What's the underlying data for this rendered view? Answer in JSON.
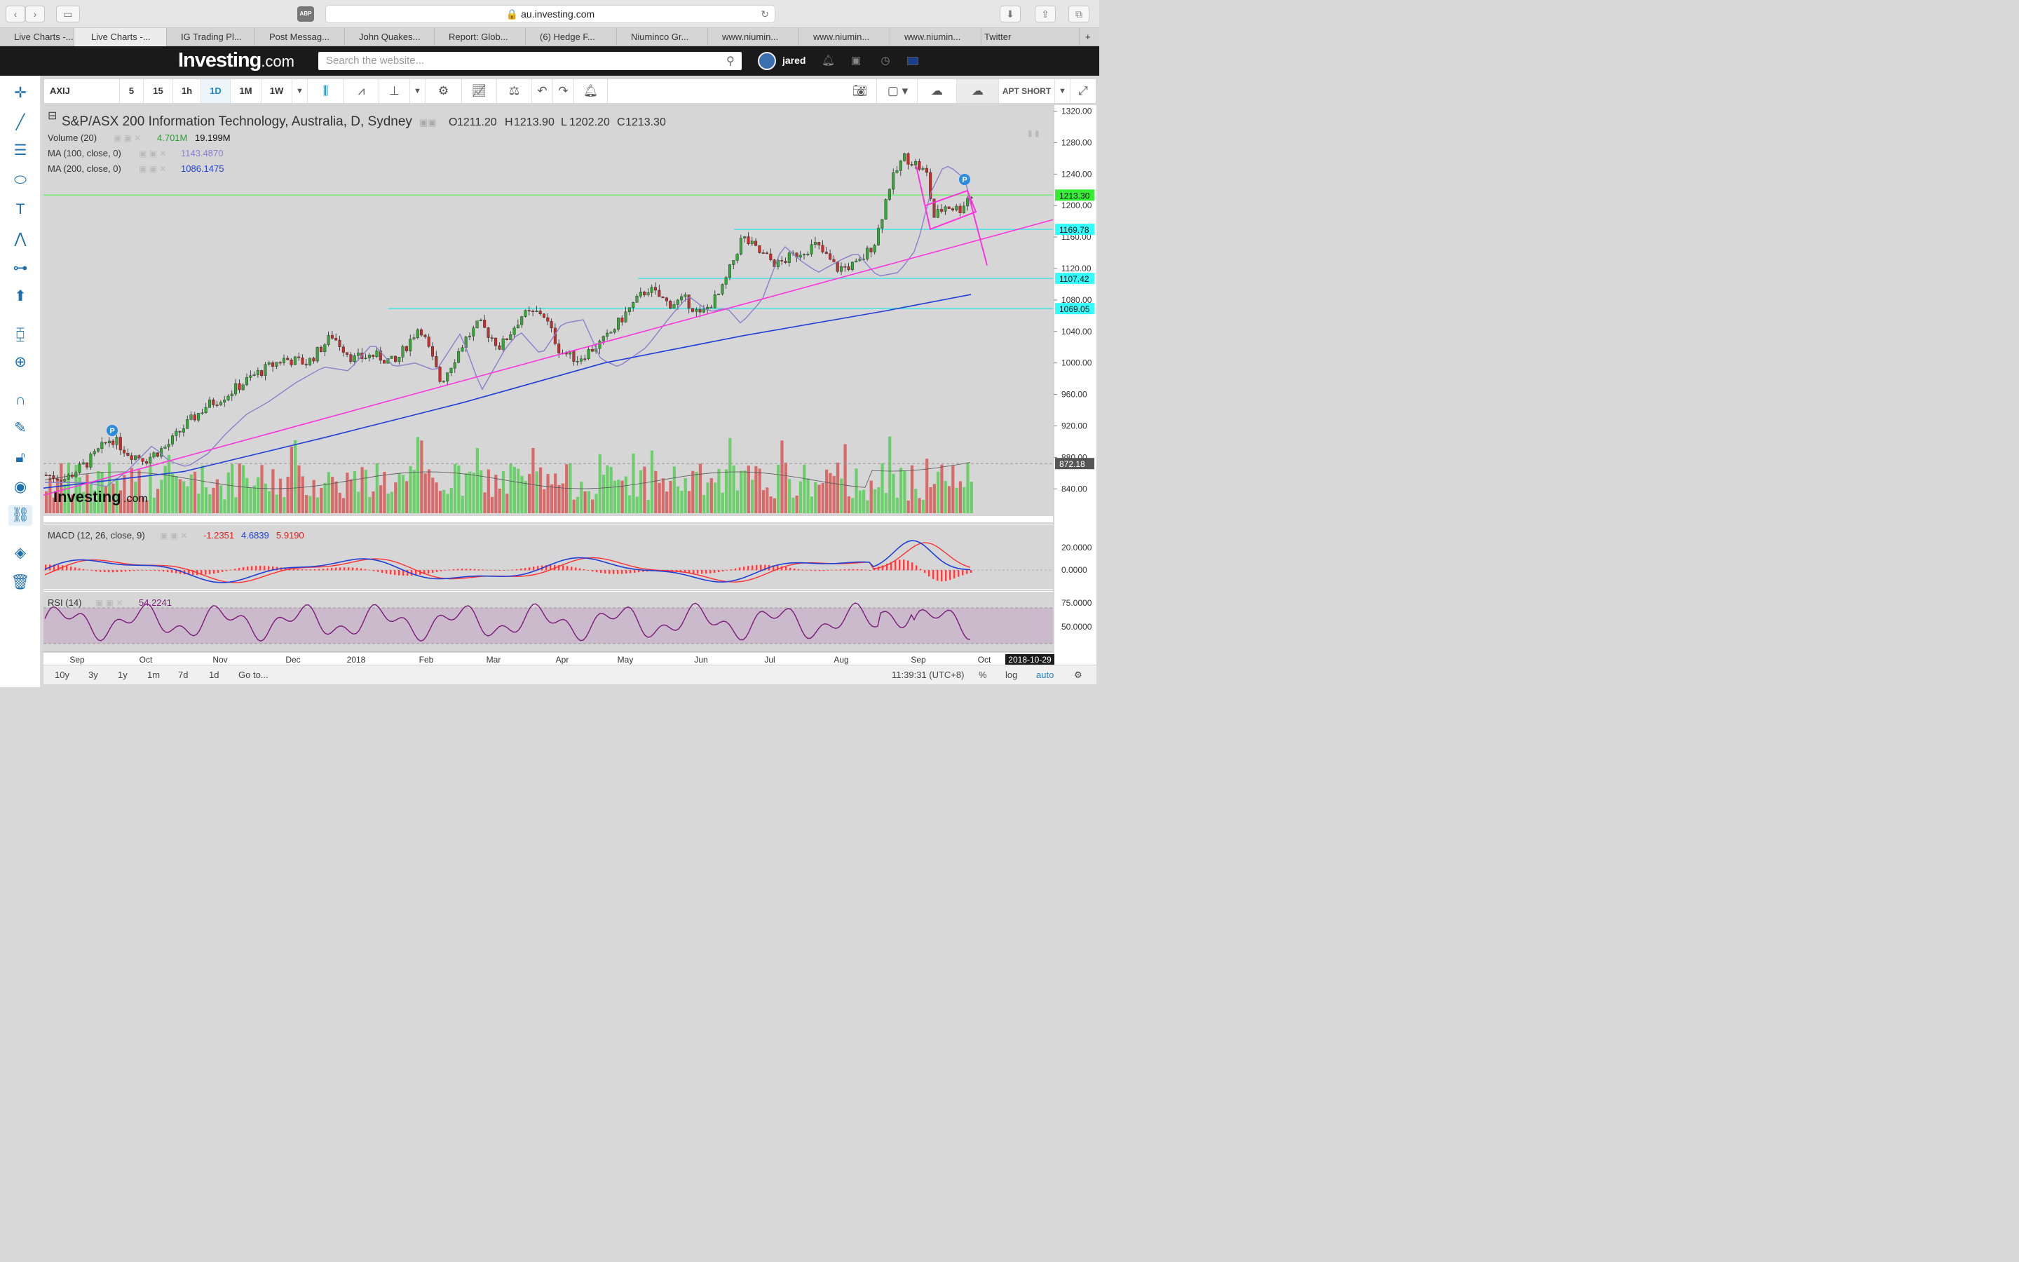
{
  "browser": {
    "url": "au.investing.com",
    "abp": "ABP",
    "tabs": [
      "Live Charts -...",
      "Live Charts -...",
      "IG Trading Pl...",
      "Post Messag...",
      "John Quakes...",
      "Report: Glob...",
      "(6) Hedge F...",
      "Niuminco Gr...",
      "www.niumin...",
      "www.niumin...",
      "www.niumin...",
      "Twitter"
    ]
  },
  "header": {
    "logo": "Investing",
    "logo_suffix": ".com",
    "search_placeholder": "Search the website...",
    "user": "jared"
  },
  "toolbar": {
    "symbol": "AXIJ",
    "intervals": [
      "5",
      "15",
      "1h",
      "1D",
      "1M",
      "1W"
    ],
    "selected_interval": "1D",
    "layout_label": "APT SHORT"
  },
  "chart": {
    "title": "S&P/ASX 200 Information Technology, Australia, D, Sydney",
    "ohlc": {
      "o_label": "O",
      "o": "1211.20",
      "h_label": "H",
      "h": "1213.90",
      "l_label": "L",
      "l": "1202.20",
      "c_label": "C",
      "c": "1213.30"
    },
    "volume": {
      "label": "Volume (20)",
      "v1": "4.701M",
      "v2": "19.199M"
    },
    "ma100": {
      "label": "MA (100, close, 0)",
      "value": "1143.4870"
    },
    "ma200": {
      "label": "MA (200, close, 0)",
      "value": "1086.1475"
    },
    "macd": {
      "label": "MACD (12, 26, close, 9)",
      "v1": "-1.2351",
      "v2": "4.6839",
      "v3": "5.9190"
    },
    "rsi": {
      "label": "RSI (14)",
      "value": "54.2241"
    },
    "price_axis": [
      "1320.00",
      "1280.00",
      "1240.00",
      "1200.00",
      "1160.00",
      "1120.00",
      "1080.00",
      "1040.00",
      "1000.00",
      "960.00",
      "920.00",
      "880.00",
      "840.00"
    ],
    "price_tags": [
      "1213.30",
      "1169.78",
      "1107.42",
      "1069.05",
      "872.18"
    ],
    "macd_axis": [
      "20.0000",
      "0.0000"
    ],
    "rsi_axis": [
      "75.0000",
      "50.0000"
    ],
    "time_axis": [
      "Sep",
      "Oct",
      "Nov",
      "Dec",
      "2018",
      "Feb",
      "Mar",
      "Apr",
      "May",
      "Jun",
      "Jul",
      "Aug",
      "Sep",
      "Oct"
    ],
    "date_tag": "2018-10-29",
    "marker": "P",
    "watermark": "Investing",
    "watermark_suffix": ".com",
    "colors": {
      "up": "#3aa63a",
      "down": "#c0302c",
      "ma100": "#8b7fc9",
      "ma200": "#1f3fd6",
      "trend": "#ff33dd",
      "level": "#33e6e6",
      "macd": "#1f3fd6",
      "signal": "#ff3030",
      "rsi": "#7a1a7a"
    }
  },
  "bottom": {
    "ranges": [
      "10y",
      "3y",
      "1y",
      "1m",
      "7d",
      "1d"
    ],
    "goto": "Go to...",
    "clock": "11:39:31 (UTC+8)",
    "opts": [
      "%",
      "log",
      "auto"
    ]
  }
}
